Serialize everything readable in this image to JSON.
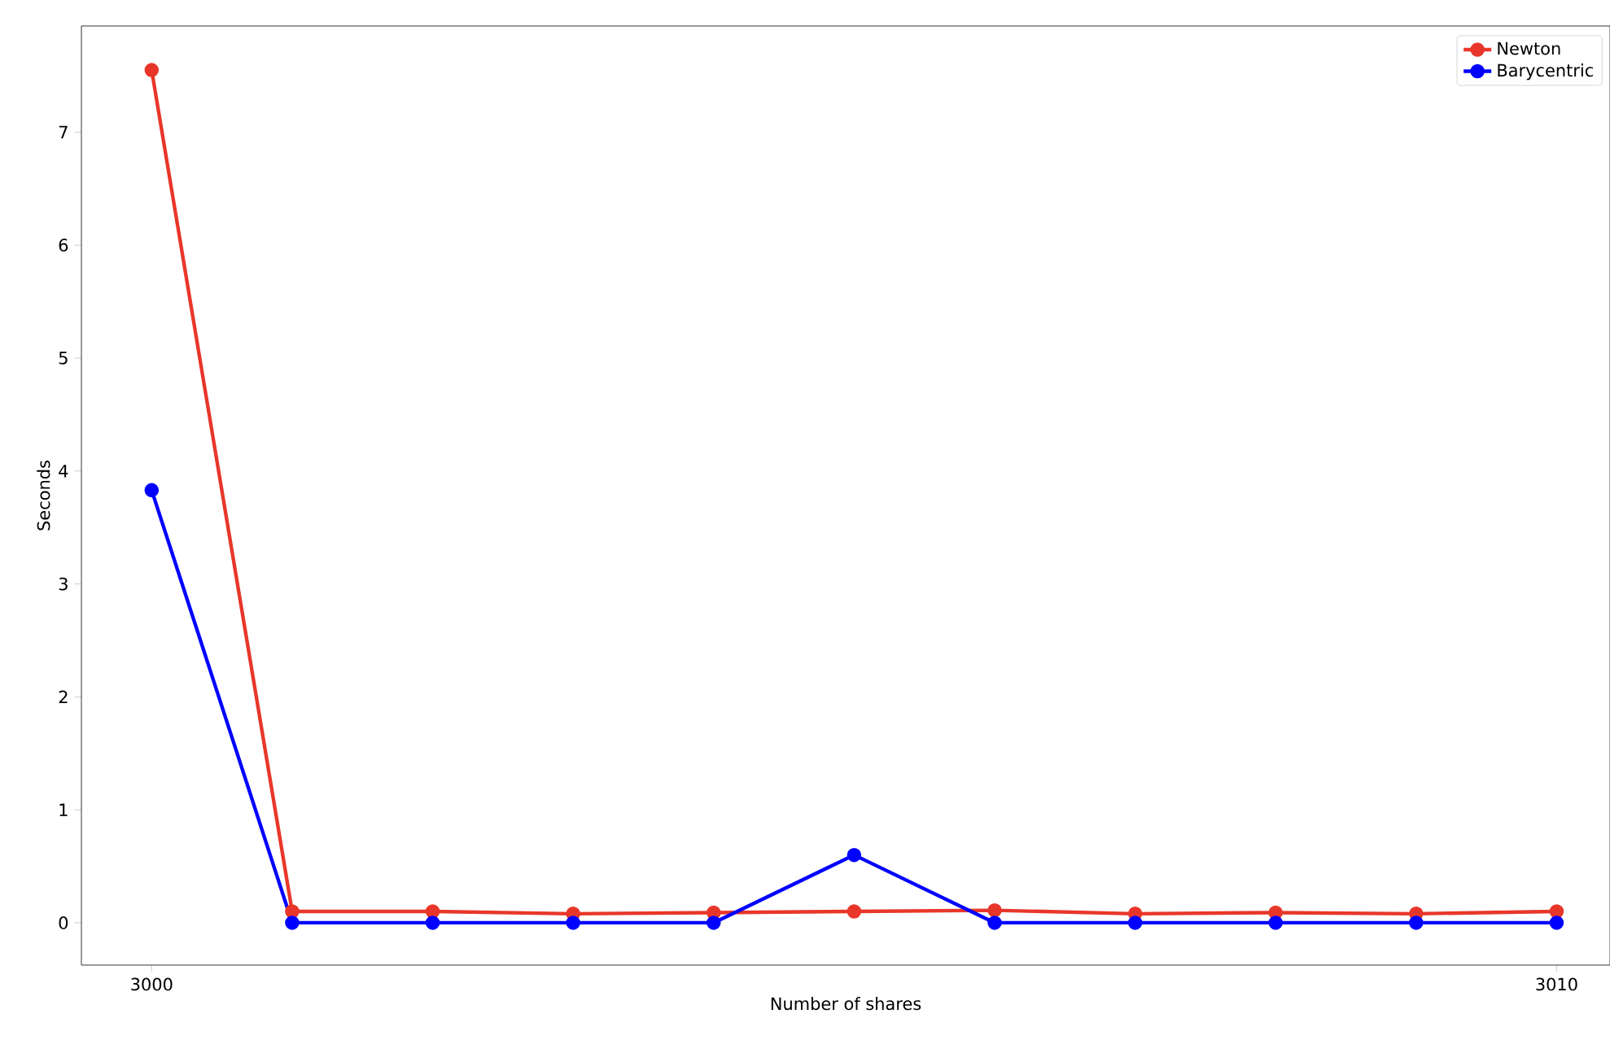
{
  "chart_data": {
    "type": "line",
    "xlabel": "Number of shares",
    "ylabel": "Seconds",
    "x": [
      3000,
      3001,
      3002,
      3003,
      3004,
      3005,
      3006,
      3007,
      3008,
      3009,
      3010
    ],
    "series": [
      {
        "name": "Newton",
        "color": "#e8372a",
        "values": [
          7.55,
          0.1,
          0.1,
          0.08,
          0.09,
          0.1,
          0.11,
          0.08,
          0.09,
          0.08,
          0.1
        ]
      },
      {
        "name": "Barycentric",
        "color": "#0000ff",
        "values": [
          3.83,
          0.0,
          0.0,
          0.0,
          0.0,
          0.6,
          0.0,
          0.0,
          0.0,
          0.0,
          0.0
        ]
      }
    ],
    "xlim": [
      2999.5,
      3010.38
    ],
    "ylim": [
      -0.375,
      7.94
    ],
    "xticks": [
      3000,
      3010
    ],
    "yticks": [
      0,
      1,
      2,
      3,
      4,
      5,
      6,
      7
    ],
    "legend": "top right",
    "marker": "circle",
    "line_style": "solid",
    "grid": false
  }
}
